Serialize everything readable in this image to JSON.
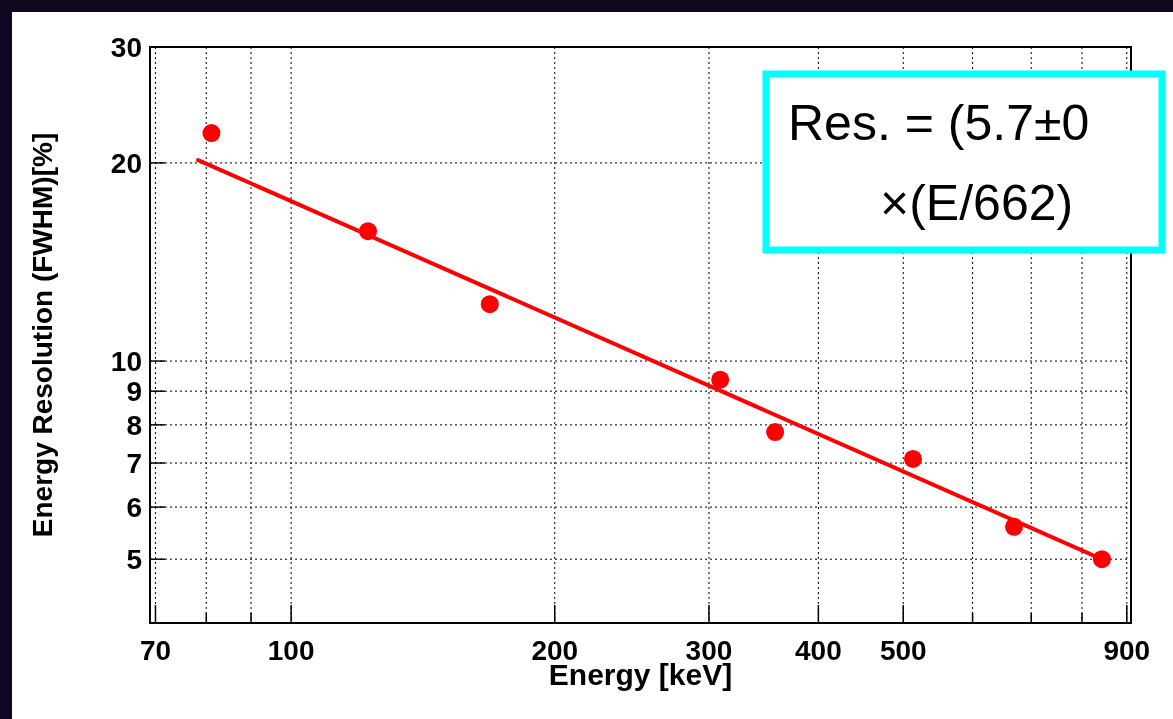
{
  "chart_data": {
    "type": "scatter",
    "xlabel": "Energy [keV]",
    "ylabel": "Energy Resolution (FWHM)[%]",
    "log": "xy",
    "xlim": [
      69,
      910
    ],
    "ylim": [
      4,
      30
    ],
    "xticks": [
      70,
      {
        "value": 80,
        "label": null
      },
      {
        "value": 90,
        "label": null
      },
      100,
      200,
      300,
      400,
      500,
      {
        "value": 600,
        "label": null
      },
      {
        "value": 700,
        "label": null
      },
      {
        "value": 800,
        "label": null
      },
      900
    ],
    "yticks": [
      5,
      6,
      7,
      8,
      9,
      10,
      20,
      30
    ],
    "grid": true,
    "marker": "circle",
    "series": [
      {
        "color": "#ff0000",
        "x": [
          81.1,
          122.4,
          168.6,
          309,
          357,
          513,
          669,
          843
        ],
        "values": [
          22.2,
          15.75,
          12.2,
          9.37,
          7.8,
          7.1,
          5.6,
          5.0
        ]
      },
      {
        "type": "line",
        "color": "#ff0000",
        "x": [
          78.3,
          843
        ],
        "values": [
          20.2,
          5.0
        ],
        "marker": "none"
      }
    ],
    "annotations": [
      "Res. = (5.7±0",
      "×(E/662)"
    ]
  }
}
